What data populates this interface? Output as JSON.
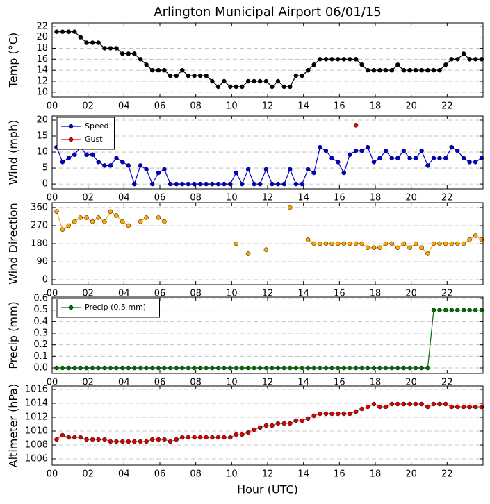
{
  "chart_data": {
    "type": "line",
    "title": "Arlington Municipal Airport 06/01/15",
    "xlabel": "Hour (UTC)",
    "xlim": [
      0,
      24
    ],
    "xticks": [
      {
        "value": 0,
        "label": "00"
      },
      {
        "value": 2,
        "label": "02"
      },
      {
        "value": 4,
        "label": "04"
      },
      {
        "value": 6,
        "label": "06"
      },
      {
        "value": 8,
        "label": "08"
      },
      {
        "value": 10,
        "label": "10"
      },
      {
        "value": 12,
        "label": "12"
      },
      {
        "value": 14,
        "label": "14"
      },
      {
        "value": 16,
        "label": "16"
      },
      {
        "value": 18,
        "label": "18"
      },
      {
        "value": 20,
        "label": "20"
      },
      {
        "value": 22,
        "label": "22"
      }
    ],
    "x": [
      0.25,
      0.58,
      0.92,
      1.25,
      1.58,
      1.92,
      2.25,
      2.58,
      2.92,
      3.25,
      3.58,
      3.92,
      4.25,
      4.58,
      4.92,
      5.25,
      5.58,
      5.92,
      6.25,
      6.58,
      6.92,
      7.25,
      7.58,
      7.92,
      8.25,
      8.58,
      8.92,
      9.25,
      9.58,
      9.92,
      10.25,
      10.58,
      10.92,
      11.25,
      11.58,
      11.92,
      12.25,
      12.58,
      12.92,
      13.25,
      13.58,
      13.92,
      14.25,
      14.58,
      14.92,
      15.25,
      15.58,
      15.92,
      16.25,
      16.58,
      16.92,
      17.25,
      17.58,
      17.92,
      18.25,
      18.58,
      18.92,
      19.25,
      19.58,
      19.92,
      20.25,
      20.58,
      20.92,
      21.25,
      21.58,
      21.92,
      22.25,
      22.58,
      22.92,
      23.25,
      23.58,
      23.92
    ],
    "grid": true,
    "panels": [
      {
        "ylabel": "Temp (°C)",
        "ylim": [
          9.1,
          22.6
        ],
        "yticks": [
          10,
          12,
          14,
          16,
          18,
          20,
          22
        ],
        "series": [
          {
            "name": "Temp",
            "color": "#000000",
            "line_color": "#000000",
            "values": [
              21,
              21,
              21,
              21,
              20,
              19,
              19,
              19,
              18,
              18,
              18,
              17,
              17,
              17,
              16,
              15,
              14,
              14,
              14,
              13,
              13,
              14,
              13,
              13,
              13,
              13,
              12,
              11,
              12,
              11,
              11,
              11,
              12,
              12,
              12,
              12,
              11,
              12,
              11,
              11,
              13,
              13,
              14,
              15,
              16,
              16,
              16,
              16,
              16,
              16,
              16,
              15,
              14,
              14,
              14,
              14,
              14,
              15,
              14,
              14,
              14,
              14,
              14,
              14,
              14,
              15,
              16,
              16,
              17,
              16,
              16,
              16
            ]
          }
        ]
      },
      {
        "ylabel": "Wind (mph)",
        "ylim": [
          -1.5,
          21.3
        ],
        "yticks": [
          0,
          5,
          10,
          15,
          20
        ],
        "legend": "upper left",
        "series": [
          {
            "name": "Speed",
            "color": "#0000cc",
            "line_color": "#0000cc",
            "values": [
              11.5,
              6.9,
              8.1,
              9.2,
              11.5,
              9.2,
              9.2,
              6.9,
              5.8,
              5.8,
              8.1,
              6.9,
              5.8,
              0,
              5.8,
              4.6,
              0,
              3.5,
              4.6,
              0,
              0,
              0,
              0,
              0,
              0,
              0,
              0,
              0,
              0,
              0,
              3.5,
              0,
              4.6,
              0,
              0,
              4.6,
              0,
              0,
              0,
              4.6,
              0,
              0,
              4.6,
              3.5,
              11.5,
              10.4,
              8.1,
              6.9,
              3.5,
              9.2,
              10.4,
              10.4,
              11.5,
              6.9,
              8.1,
              10.4,
              8.1,
              8.1,
              10.4,
              8.1,
              8.1,
              10.4,
              5.8,
              8.1,
              8.1,
              8.1,
              11.5,
              10.4,
              8.1,
              6.9,
              6.9,
              8.1
            ]
          },
          {
            "name": "Gust",
            "color": "#ee0000",
            "line_color": "#ee0000",
            "values": [
              null,
              null,
              null,
              null,
              null,
              null,
              null,
              null,
              null,
              null,
              null,
              null,
              null,
              null,
              null,
              null,
              null,
              null,
              null,
              null,
              null,
              null,
              null,
              null,
              null,
              null,
              null,
              null,
              null,
              null,
              null,
              null,
              null,
              null,
              null,
              null,
              null,
              null,
              null,
              null,
              null,
              null,
              null,
              null,
              null,
              null,
              null,
              null,
              null,
              null,
              18.4,
              null,
              null,
              null,
              null,
              null,
              null,
              null,
              null,
              null,
              null,
              null,
              null,
              null,
              null,
              null,
              null,
              null,
              null,
              null,
              null,
              null
            ]
          }
        ]
      },
      {
        "ylabel": "Wind Direction",
        "ylim": [
          -24,
          384
        ],
        "yticks": [
          0,
          90,
          180,
          270,
          360
        ],
        "series": [
          {
            "name": "Direction",
            "color": "#ffa500",
            "line_color": "#ffa500",
            "values": [
              340,
              250,
              270,
              290,
              310,
              310,
              290,
              310,
              290,
              340,
              320,
              290,
              270,
              null,
              290,
              310,
              null,
              310,
              290,
              null,
              null,
              null,
              null,
              null,
              null,
              null,
              null,
              null,
              null,
              null,
              180,
              null,
              130,
              null,
              null,
              150,
              null,
              null,
              null,
              360,
              null,
              null,
              200,
              180,
              180,
              180,
              180,
              180,
              180,
              180,
              180,
              180,
              160,
              160,
              160,
              180,
              180,
              160,
              180,
              160,
              180,
              160,
              130,
              180,
              180,
              180,
              180,
              180,
              180,
              200,
              220,
              200
            ]
          }
        ]
      },
      {
        "ylabel": "Precip (mm)",
        "ylim": [
          -0.048,
          0.612
        ],
        "yticks": [
          {
            "value": 0,
            "label": "0.0"
          },
          0.1,
          0.2,
          0.3,
          0.4,
          0.5,
          0.6
        ],
        "legend": "upper left",
        "series": [
          {
            "name": "Precip (0.5 mm)",
            "color": "#007000",
            "line_color": "#007000",
            "values": [
              0,
              0,
              0,
              0,
              0,
              0,
              0,
              0,
              0,
              0,
              0,
              0,
              0,
              0,
              0,
              0,
              0,
              0,
              0,
              0,
              0,
              0,
              0,
              0,
              0,
              0,
              0,
              0,
              0,
              0,
              0,
              0,
              0,
              0,
              0,
              0,
              0,
              0,
              0,
              0,
              0,
              0,
              0,
              0,
              0,
              0,
              0,
              0,
              0,
              0,
              0,
              0,
              0,
              0,
              0,
              0,
              0,
              0,
              0,
              0,
              0,
              0,
              0,
              0.5,
              0.5,
              0.5,
              0.5,
              0.5,
              0.5,
              0.5,
              0.5,
              0.5
            ]
          }
        ]
      },
      {
        "ylabel": "Altimeter (hPa)",
        "ylim": [
          1005.1,
          1016.5
        ],
        "yticks": [
          1006,
          1008,
          1010,
          1012,
          1014,
          1016
        ],
        "series": [
          {
            "name": "Altimeter",
            "color": "#dd0000",
            "line_color": "#808080",
            "values": [
              1008.8,
              1009.4,
              1009.1,
              1009.1,
              1009.1,
              1008.8,
              1008.8,
              1008.8,
              1008.8,
              1008.5,
              1008.5,
              1008.5,
              1008.5,
              1008.5,
              1008.5,
              1008.5,
              1008.8,
              1008.8,
              1008.8,
              1008.5,
              1008.8,
              1009.1,
              1009.1,
              1009.1,
              1009.1,
              1009.1,
              1009.1,
              1009.1,
              1009.1,
              1009.1,
              1009.5,
              1009.5,
              1009.8,
              1010.2,
              1010.5,
              1010.8,
              1010.8,
              1011.1,
              1011.1,
              1011.1,
              1011.5,
              1011.5,
              1011.8,
              1012.2,
              1012.5,
              1012.5,
              1012.5,
              1012.5,
              1012.5,
              1012.5,
              1012.8,
              1013.2,
              1013.5,
              1013.9,
              1013.5,
              1013.5,
              1013.9,
              1013.9,
              1013.9,
              1013.9,
              1013.9,
              1013.9,
              1013.5,
              1013.9,
              1013.9,
              1013.9,
              1013.5,
              1013.5,
              1013.5,
              1013.5,
              1013.5,
              1013.5
            ]
          }
        ]
      }
    ]
  }
}
